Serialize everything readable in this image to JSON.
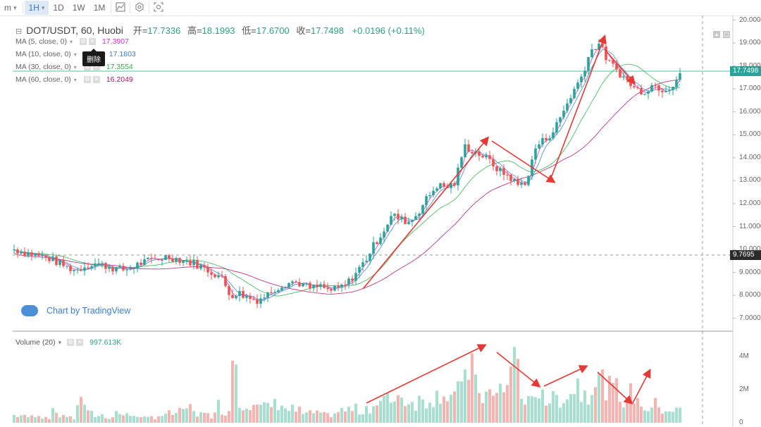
{
  "toolbar": {
    "items": [
      {
        "label": "m",
        "active": false,
        "caret": true
      },
      {
        "label": "1H",
        "active": true,
        "caret": true
      },
      {
        "label": "1D",
        "active": false
      },
      {
        "label": "1W",
        "active": false
      },
      {
        "label": "1M",
        "active": false
      }
    ],
    "icons": [
      "indicator-icon",
      "settings-icon",
      "screenshot-icon"
    ]
  },
  "header": {
    "symbol": "DOT/USDT, 60, Huobi",
    "open_label": "开=",
    "open": "17.7336",
    "high_label": "高=",
    "high": "18.1993",
    "low_label": "低=",
    "low": "17.6700",
    "close_label": "收=",
    "close": "17.7498",
    "change": "+0.0196 (+0.11%)"
  },
  "ma": [
    {
      "label": "MA (5, close, 0)",
      "value": "17.3907",
      "color": "#d62fd6"
    },
    {
      "label": "MA (10, close, 0)",
      "value": "17.1803",
      "color": "#3d7fcf"
    },
    {
      "label": "MA (30, close, 0)",
      "value": "17.3554",
      "color": "#2bb54a"
    },
    {
      "label": "MA (60, close, 0)",
      "value": "16.2049",
      "color": "#b0166d"
    }
  ],
  "tooltip": "删除",
  "tv_logo": "Chart by TradingView",
  "volume": {
    "label": "Volume (20)",
    "value": "997.613K"
  },
  "price_tags": {
    "current": "17.7498",
    "crosshair": "9.7695"
  },
  "colors": {
    "up": "#26a69a",
    "down": "#ef5350",
    "up_vol": "#a8e0cf",
    "down_vol": "#f7b3b0",
    "arrow": "#e53935"
  },
  "chart_data": {
    "type": "candlestick",
    "y_axis_ticks": [
      "20.0000",
      "19.0000",
      "18.0000",
      "17.0000",
      "16.0000",
      "15.0000",
      "14.0000",
      "13.0000",
      "12.0000",
      "11.0000",
      "10.0000",
      "9.0000",
      "8.0000",
      "7.0000"
    ],
    "ylim": [
      6.5,
      20.2
    ],
    "volume_ticks": [
      "4M",
      "2M",
      "0"
    ],
    "volume_lim": [
      0,
      5000000
    ],
    "close_path": [
      10.0,
      9.9,
      9.8,
      9.7,
      9.6,
      9.4,
      9.2,
      9.1,
      9.3,
      9.4,
      9.3,
      9.2,
      9.1,
      9.2,
      9.4,
      9.5,
      9.6,
      9.7,
      9.6,
      9.5,
      9.4,
      9.2,
      9.0,
      8.8,
      8.0,
      8.1,
      7.9,
      7.8,
      8.0,
      8.3,
      8.5,
      8.6,
      8.5,
      8.3,
      8.4,
      8.2,
      8.3,
      8.5,
      9.0,
      9.5,
      10.2,
      10.8,
      11.5,
      11.3,
      11.2,
      11.7,
      12.3,
      12.8,
      12.7,
      12.9,
      14.5,
      14.3,
      14.1,
      13.8,
      13.4,
      13.2,
      12.8,
      13.0,
      14.5,
      14.8,
      15.2,
      16.0,
      16.8,
      17.5,
      18.6,
      19.0,
      18.2,
      17.8,
      17.4,
      17.0,
      16.9,
      17.2,
      17.0,
      17.1,
      17.7
    ],
    "volume_path": [
      0.5,
      0.4,
      0.6,
      0.4,
      0.7,
      0.5,
      0.3,
      1.4,
      0.6,
      0.5,
      0.4,
      0.7,
      0.5,
      0.6,
      0.3,
      0.4,
      0.5,
      0.6,
      0.7,
      1.0,
      0.6,
      0.5,
      1.2,
      0.8,
      4.8,
      1.5,
      1.3,
      1.0,
      1.2,
      1.4,
      0.9,
      0.8,
      0.6,
      0.7,
      0.5,
      0.6,
      0.8,
      0.9,
      0.8,
      1.1,
      1.3,
      1.5,
      2.0,
      1.6,
      1.4,
      1.5,
      1.8,
      2.2,
      1.9,
      2.0,
      3.9,
      2.3,
      1.9,
      1.7,
      2.4,
      4.2,
      1.8,
      1.3,
      2.6,
      1.5,
      1.7,
      1.9,
      2.6,
      2.2,
      2.9,
      2.7,
      2.2,
      1.7,
      1.9,
      1.4,
      1.0,
      1.2,
      0.9,
      0.8,
      1.0
    ]
  }
}
